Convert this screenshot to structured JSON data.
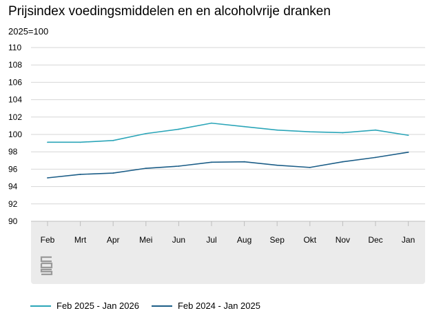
{
  "title": "Prijsindex voedingsmiddelen en en alcoholvrije dranken",
  "unit_label": "2025=100",
  "colors": {
    "series1": "#2aa5b8",
    "series2": "#1b5d87",
    "grid": "#d6d6d6",
    "band": "#ebebeb"
  },
  "logo": "cbs-logo",
  "chart_data": {
    "type": "line",
    "title": "Prijsindex voedingsmiddelen en en alcoholvrije dranken",
    "ylabel": "2025=100",
    "xlabel": "",
    "ylim": [
      90,
      110
    ],
    "yticks": [
      90,
      92,
      94,
      96,
      98,
      100,
      102,
      104,
      106,
      108,
      110
    ],
    "grid": true,
    "legend_position": "bottom-left",
    "categories": [
      "Feb",
      "Mrt",
      "Apr",
      "Mei",
      "Jun",
      "Jul",
      "Aug",
      "Sep",
      "Okt",
      "Nov",
      "Dec",
      "Jan"
    ],
    "series": [
      {
        "name": "Feb 2025 - Jan 2026",
        "color": "#2aa5b8",
        "values": [
          99.1,
          99.1,
          99.3,
          100.1,
          100.6,
          101.3,
          100.9,
          100.5,
          100.3,
          100.2,
          100.5,
          99.9
        ]
      },
      {
        "name": "Feb 2024 - Jan 2025",
        "color": "#1b5d87",
        "values": [
          95.0,
          95.4,
          95.55,
          96.1,
          96.35,
          96.8,
          96.85,
          96.45,
          96.2,
          96.85,
          97.35,
          97.95
        ]
      }
    ]
  }
}
